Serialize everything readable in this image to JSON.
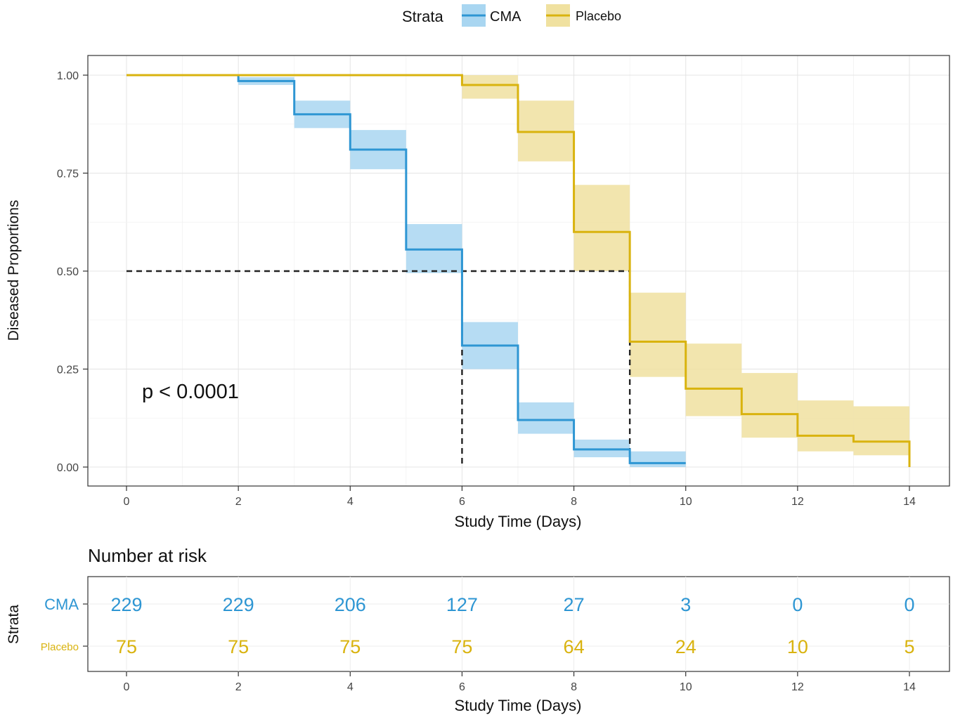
{
  "legend": {
    "title": "Strata",
    "items": [
      {
        "label": "CMA",
        "color": "#2e96d3",
        "band_color": "#a9d6f1"
      },
      {
        "label": "Placebo",
        "color": "#d9b30f",
        "band_color": "#f0e1a0"
      }
    ]
  },
  "chart_data": [
    {
      "type": "line",
      "subtype": "kaplan-meier step curves with confidence bands",
      "xlabel": "Study Time (Days)",
      "ylabel": "Diseased Proportions",
      "xlim": [
        0,
        14
      ],
      "ylim": [
        0,
        1
      ],
      "x_ticks": [
        0,
        2,
        4,
        6,
        8,
        10,
        12,
        14
      ],
      "y_ticks": [
        "0.00",
        "0.25",
        "0.50",
        "0.75",
        "1.00"
      ],
      "grid": true,
      "annotation": "p < 0.0001",
      "median_lines": {
        "y": 0.5,
        "x": [
          6,
          9
        ]
      },
      "series": [
        {
          "name": "CMA",
          "color": "#2e96d3",
          "steps": [
            {
              "x0": 0,
              "x1": 2,
              "y": 1.0,
              "lo": 1.0,
              "hi": 1.0
            },
            {
              "x0": 2,
              "x1": 3,
              "y": 0.985,
              "lo": 0.975,
              "hi": 0.995
            },
            {
              "x0": 3,
              "x1": 4,
              "y": 0.9,
              "lo": 0.865,
              "hi": 0.935
            },
            {
              "x0": 4,
              "x1": 5,
              "y": 0.81,
              "lo": 0.76,
              "hi": 0.86
            },
            {
              "x0": 5,
              "x1": 6,
              "y": 0.555,
              "lo": 0.495,
              "hi": 0.62
            },
            {
              "x0": 6,
              "x1": 7,
              "y": 0.31,
              "lo": 0.25,
              "hi": 0.37
            },
            {
              "x0": 7,
              "x1": 8,
              "y": 0.12,
              "lo": 0.085,
              "hi": 0.165
            },
            {
              "x0": 8,
              "x1": 9,
              "y": 0.045,
              "lo": 0.025,
              "hi": 0.07
            },
            {
              "x0": 9,
              "x1": 10,
              "y": 0.01,
              "lo": 0.0,
              "hi": 0.04
            }
          ]
        },
        {
          "name": "Placebo",
          "color": "#d9b30f",
          "steps": [
            {
              "x0": 0,
              "x1": 6,
              "y": 1.0,
              "lo": 1.0,
              "hi": 1.0
            },
            {
              "x0": 6,
              "x1": 7,
              "y": 0.975,
              "lo": 0.94,
              "hi": 1.0
            },
            {
              "x0": 7,
              "x1": 8,
              "y": 0.855,
              "lo": 0.78,
              "hi": 0.935
            },
            {
              "x0": 8,
              "x1": 9,
              "y": 0.6,
              "lo": 0.5,
              "hi": 0.72
            },
            {
              "x0": 9,
              "x1": 10,
              "y": 0.32,
              "lo": 0.23,
              "hi": 0.445
            },
            {
              "x0": 10,
              "x1": 11,
              "y": 0.2,
              "lo": 0.13,
              "hi": 0.315
            },
            {
              "x0": 11,
              "x1": 12,
              "y": 0.135,
              "lo": 0.075,
              "hi": 0.24
            },
            {
              "x0": 12,
              "x1": 13,
              "y": 0.08,
              "lo": 0.04,
              "hi": 0.17
            },
            {
              "x0": 13,
              "x1": 14,
              "y": 0.065,
              "lo": 0.03,
              "hi": 0.155
            }
          ],
          "end": {
            "x": 14,
            "y": 0.0
          }
        }
      ]
    },
    {
      "type": "table",
      "title": "Number at risk",
      "xlabel": "Study Time (Days)",
      "ylabel": "Strata",
      "x_ticks": [
        0,
        2,
        4,
        6,
        8,
        10,
        12,
        14
      ],
      "rows": [
        {
          "label": "CMA",
          "color": "#2e96d3",
          "values": [
            229,
            229,
            206,
            127,
            27,
            3,
            0,
            0
          ]
        },
        {
          "label": "Placebo",
          "color": "#d9b30f",
          "values": [
            75,
            75,
            75,
            75,
            64,
            24,
            10,
            5
          ]
        }
      ]
    }
  ]
}
